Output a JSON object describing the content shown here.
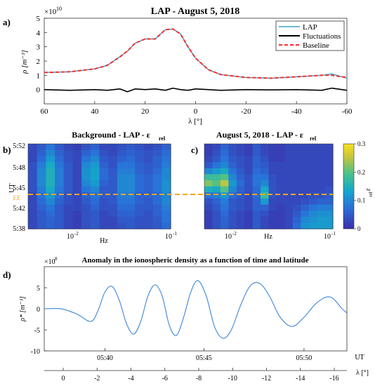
{
  "panel_labels": [
    "a)",
    "b)",
    "c)",
    "d)"
  ],
  "colors": {
    "lap": "#3aa6c9",
    "fluctuations": "#000000",
    "baseline": "#ff2a2a",
    "ee_line": "#f5a623",
    "anomaly": "#4a90d9",
    "cmap_low": "#3b2ea8",
    "cmap_high": "#f8e21f"
  },
  "chart_data": [
    {
      "id": "a",
      "type": "line",
      "title": "LAP - August 5, 2018",
      "xlabel": "λ [°]",
      "ylabel": "ρ [m⁻³]",
      "y_multiplier": "×10",
      "y_multiplier_exp": "10",
      "xlim": [
        60,
        -60
      ],
      "ylim": [
        -1,
        5
      ],
      "xticks": [
        60,
        40,
        20,
        0,
        -20,
        -40,
        -60
      ],
      "yticks": [
        0,
        1,
        2,
        3,
        4,
        5
      ],
      "legend": {
        "position": "top-right",
        "entries": [
          "LAP",
          "Fluctuations",
          "Baseline"
        ]
      },
      "x": [
        60,
        50,
        40,
        35,
        30,
        27,
        24,
        20,
        16,
        12,
        9,
        6,
        3,
        0,
        -5,
        -10,
        -20,
        -30,
        -40,
        -50,
        -54,
        -60
      ],
      "series": [
        {
          "name": "LAP",
          "y": [
            1.2,
            1.25,
            1.45,
            1.7,
            2.3,
            2.7,
            3.25,
            3.55,
            3.55,
            4.2,
            4.25,
            3.9,
            3.0,
            2.2,
            1.4,
            1.05,
            0.85,
            0.8,
            0.9,
            1.0,
            1.1,
            0.8
          ]
        },
        {
          "name": "Baseline",
          "y": [
            1.2,
            1.25,
            1.45,
            1.7,
            2.3,
            2.7,
            3.25,
            3.55,
            3.55,
            4.2,
            4.25,
            3.9,
            3.0,
            2.2,
            1.4,
            1.05,
            0.85,
            0.8,
            0.9,
            1.0,
            1.0,
            0.85
          ]
        },
        {
          "name": "Fluctuations",
          "y": [
            0.0,
            -0.05,
            0.0,
            -0.05,
            0.05,
            -0.15,
            0.05,
            0.0,
            0.05,
            -0.05,
            0.1,
            0.0,
            -0.05,
            0.05,
            0.0,
            -0.05,
            0.0,
            -0.02,
            0.0,
            -0.05,
            0.1,
            -0.05
          ]
        }
      ]
    },
    {
      "id": "b",
      "type": "heatmap",
      "title": "Background - LAP - ε",
      "title_sub": "rel",
      "xlabel": "Hz",
      "ylabel": "UT",
      "xticks_base": "10",
      "xticks_exp": [
        "-2",
        "-1"
      ],
      "yticks": [
        "5:52",
        "5:48",
        "5:45",
        "5:42",
        "5:38"
      ],
      "ee_label": "EE",
      "columns": [
        [
          0.03,
          0.03,
          0.03,
          0.04,
          0.04,
          0.04,
          0.04,
          0.04,
          0.03,
          0.03,
          0.03,
          0.03,
          0.03,
          0.03
        ],
        [
          0.05,
          0.06,
          0.07,
          0.09,
          0.1,
          0.1,
          0.1,
          0.09,
          0.08,
          0.07,
          0.06,
          0.05,
          0.05,
          0.05
        ],
        [
          0.08,
          0.1,
          0.12,
          0.14,
          0.15,
          0.15,
          0.15,
          0.14,
          0.12,
          0.1,
          0.08,
          0.07,
          0.06,
          0.06
        ],
        [
          0.05,
          0.06,
          0.07,
          0.08,
          0.09,
          0.09,
          0.09,
          0.08,
          0.07,
          0.06,
          0.05,
          0.05,
          0.05,
          0.05
        ],
        [
          0.03,
          0.04,
          0.04,
          0.05,
          0.05,
          0.05,
          0.05,
          0.05,
          0.04,
          0.04,
          0.03,
          0.03,
          0.03,
          0.03
        ],
        [
          0.02,
          0.03,
          0.03,
          0.03,
          0.03,
          0.03,
          0.03,
          0.03,
          0.03,
          0.03,
          0.03,
          0.02,
          0.02,
          0.02
        ],
        [
          0.04,
          0.06,
          0.08,
          0.1,
          0.11,
          0.11,
          0.1,
          0.08,
          0.06,
          0.05,
          0.04,
          0.04,
          0.04,
          0.04
        ],
        [
          0.06,
          0.08,
          0.1,
          0.12,
          0.13,
          0.13,
          0.12,
          0.1,
          0.08,
          0.07,
          0.06,
          0.05,
          0.05,
          0.05
        ],
        [
          0.03,
          0.04,
          0.05,
          0.06,
          0.07,
          0.07,
          0.06,
          0.05,
          0.05,
          0.04,
          0.04,
          0.03,
          0.03,
          0.03
        ],
        [
          0.03,
          0.03,
          0.04,
          0.04,
          0.05,
          0.05,
          0.05,
          0.05,
          0.05,
          0.05,
          0.04,
          0.04,
          0.03,
          0.03
        ],
        [
          0.04,
          0.05,
          0.06,
          0.08,
          0.09,
          0.1,
          0.1,
          0.1,
          0.09,
          0.08,
          0.07,
          0.06,
          0.05,
          0.04
        ],
        [
          0.05,
          0.06,
          0.07,
          0.08,
          0.09,
          0.1,
          0.1,
          0.1,
          0.09,
          0.08,
          0.07,
          0.06,
          0.05,
          0.05
        ],
        [
          0.04,
          0.05,
          0.05,
          0.06,
          0.06,
          0.07,
          0.07,
          0.07,
          0.06,
          0.06,
          0.05,
          0.05,
          0.04,
          0.04
        ],
        [
          0.03,
          0.04,
          0.04,
          0.05,
          0.05,
          0.06,
          0.06,
          0.06,
          0.06,
          0.05,
          0.05,
          0.04,
          0.04,
          0.04
        ],
        [
          0.04,
          0.05,
          0.06,
          0.06,
          0.07,
          0.08,
          0.08,
          0.08,
          0.07,
          0.07,
          0.06,
          0.06,
          0.05,
          0.05
        ],
        [
          0.06,
          0.07,
          0.08,
          0.09,
          0.1,
          0.1,
          0.11,
          0.11,
          0.1,
          0.1,
          0.09,
          0.08,
          0.08,
          0.07
        ]
      ]
    },
    {
      "id": "c",
      "type": "heatmap",
      "title": "August 5, 2018 - LAP - ε",
      "title_sub": "rel",
      "xlabel": "Hz",
      "xticks_base": "10",
      "xticks_exp": [
        "-2",
        "-1"
      ],
      "columns": [
        [
          0.02,
          0.02,
          0.03,
          0.05,
          0.1,
          0.18,
          0.22,
          0.15,
          0.08,
          0.04,
          0.03,
          0.02,
          0.02,
          0.02
        ],
        [
          0.03,
          0.04,
          0.05,
          0.08,
          0.12,
          0.18,
          0.2,
          0.14,
          0.09,
          0.06,
          0.05,
          0.04,
          0.04,
          0.04
        ],
        [
          0.06,
          0.07,
          0.08,
          0.1,
          0.14,
          0.2,
          0.25,
          0.2,
          0.12,
          0.09,
          0.08,
          0.07,
          0.06,
          0.06
        ],
        [
          0.04,
          0.04,
          0.05,
          0.06,
          0.08,
          0.1,
          0.12,
          0.1,
          0.07,
          0.05,
          0.05,
          0.04,
          0.04,
          0.04
        ],
        [
          0.03,
          0.03,
          0.04,
          0.04,
          0.05,
          0.06,
          0.07,
          0.06,
          0.05,
          0.04,
          0.04,
          0.03,
          0.03,
          0.03
        ],
        [
          0.02,
          0.02,
          0.03,
          0.03,
          0.03,
          0.04,
          0.04,
          0.04,
          0.03,
          0.03,
          0.03,
          0.02,
          0.02,
          0.02
        ],
        [
          0.05,
          0.05,
          0.06,
          0.06,
          0.07,
          0.08,
          0.08,
          0.07,
          0.07,
          0.06,
          0.06,
          0.05,
          0.05,
          0.05
        ],
        [
          0.03,
          0.03,
          0.04,
          0.05,
          0.06,
          0.08,
          0.1,
          0.14,
          0.18,
          0.12,
          0.06,
          0.04,
          0.03,
          0.03
        ],
        [
          0.02,
          0.02,
          0.02,
          0.03,
          0.03,
          0.04,
          0.04,
          0.04,
          0.04,
          0.03,
          0.03,
          0.02,
          0.02,
          0.02
        ],
        [
          0.02,
          0.02,
          0.02,
          0.03,
          0.03,
          0.03,
          0.03,
          0.03,
          0.03,
          0.03,
          0.02,
          0.02,
          0.02,
          0.02
        ],
        [
          0.03,
          0.03,
          0.03,
          0.03,
          0.03,
          0.03,
          0.03,
          0.03,
          0.03,
          0.03,
          0.03,
          0.03,
          0.03,
          0.03
        ],
        [
          0.03,
          0.03,
          0.03,
          0.03,
          0.03,
          0.03,
          0.03,
          0.03,
          0.03,
          0.03,
          0.04,
          0.05,
          0.06,
          0.07
        ],
        [
          0.03,
          0.03,
          0.03,
          0.03,
          0.03,
          0.03,
          0.03,
          0.03,
          0.03,
          0.04,
          0.06,
          0.08,
          0.1,
          0.11
        ],
        [
          0.03,
          0.03,
          0.03,
          0.03,
          0.03,
          0.03,
          0.03,
          0.03,
          0.04,
          0.05,
          0.08,
          0.1,
          0.11,
          0.12
        ],
        [
          0.03,
          0.03,
          0.03,
          0.03,
          0.03,
          0.03,
          0.03,
          0.03,
          0.04,
          0.06,
          0.09,
          0.11,
          0.12,
          0.12
        ],
        [
          0.03,
          0.03,
          0.03,
          0.03,
          0.03,
          0.03,
          0.03,
          0.04,
          0.05,
          0.06,
          0.09,
          0.11,
          0.12,
          0.12
        ]
      ]
    },
    {
      "id": "colorbar",
      "type": "heatmap",
      "label": "ε",
      "label_sub": "rel",
      "range": [
        0,
        0.3
      ],
      "ticks": [
        "0",
        "0.1",
        "0.2",
        "0.3"
      ]
    },
    {
      "id": "d",
      "type": "line",
      "title": "Anomaly in the ionospheric density as a function of time and latitude",
      "ylabel": "ρ* [m⁻³]",
      "y_multiplier": "×10",
      "y_multiplier_exp": "8",
      "xlabel": "UT",
      "xlabel2": "λ [°]",
      "ylim": [
        -10,
        10
      ],
      "yticks": [
        5,
        0,
        -5,
        -10
      ],
      "xticks_ut": [
        "05:40",
        "05:45",
        "05:50"
      ],
      "xticks_lat": [
        0,
        -2,
        -4,
        -6,
        -8,
        -10,
        -12,
        -14,
        -16
      ],
      "series": [
        {
          "name": "ρ*",
          "x": [
            5.616,
            5.63,
            5.643,
            5.655,
            5.661,
            5.667,
            5.673,
            5.679,
            5.685,
            5.691,
            5.697,
            5.703,
            5.709,
            5.715,
            5.721,
            5.727,
            5.733,
            5.739,
            5.745,
            5.752,
            5.759,
            5.766,
            5.773,
            5.781,
            5.789,
            5.797,
            5.805,
            5.814,
            5.824,
            5.834,
            5.845,
            5.856,
            5.866,
            5.87
          ],
          "y": [
            0,
            0,
            -1.2,
            -3,
            -0.5,
            4,
            5.3,
            2,
            -3.5,
            -6,
            -3,
            3,
            5.7,
            3,
            -4,
            -6.3,
            -2,
            4,
            6.7,
            3,
            -4.3,
            -7,
            -5,
            1,
            5.5,
            6,
            3,
            -2,
            -4.2,
            -2,
            1.5,
            2.8,
            0,
            -1
          ]
        }
      ]
    }
  ]
}
